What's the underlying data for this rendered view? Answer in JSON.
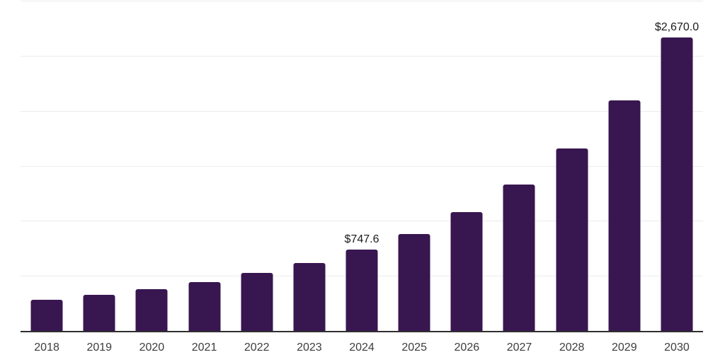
{
  "chart_data": {
    "type": "bar",
    "categories": [
      "2018",
      "2019",
      "2020",
      "2021",
      "2022",
      "2023",
      "2024",
      "2025",
      "2026",
      "2027",
      "2028",
      "2029",
      "2030"
    ],
    "values": [
      290,
      336,
      385,
      450,
      533,
      624,
      747.6,
      887,
      1083,
      1334,
      1665,
      2098,
      2670
    ],
    "data_labels": {
      "2024": "$747.6",
      "2030": "$2,670.0"
    },
    "title": "",
    "xlabel": "",
    "ylabel": "",
    "ylim": [
      0,
      3000
    ],
    "gridlines": [
      500,
      1000,
      1500,
      2000,
      2500,
      3000
    ],
    "grid": "horizontal-only",
    "legend": "none",
    "y_axis_tick_labels": "none",
    "colors": {
      "bar": "#381650",
      "gridline": "#ececec",
      "axis_line": "#2f2f2f",
      "background": "#ffffff",
      "data_label_text": "#1a1a1a",
      "axis_label_text": "#3d3d3d"
    }
  }
}
